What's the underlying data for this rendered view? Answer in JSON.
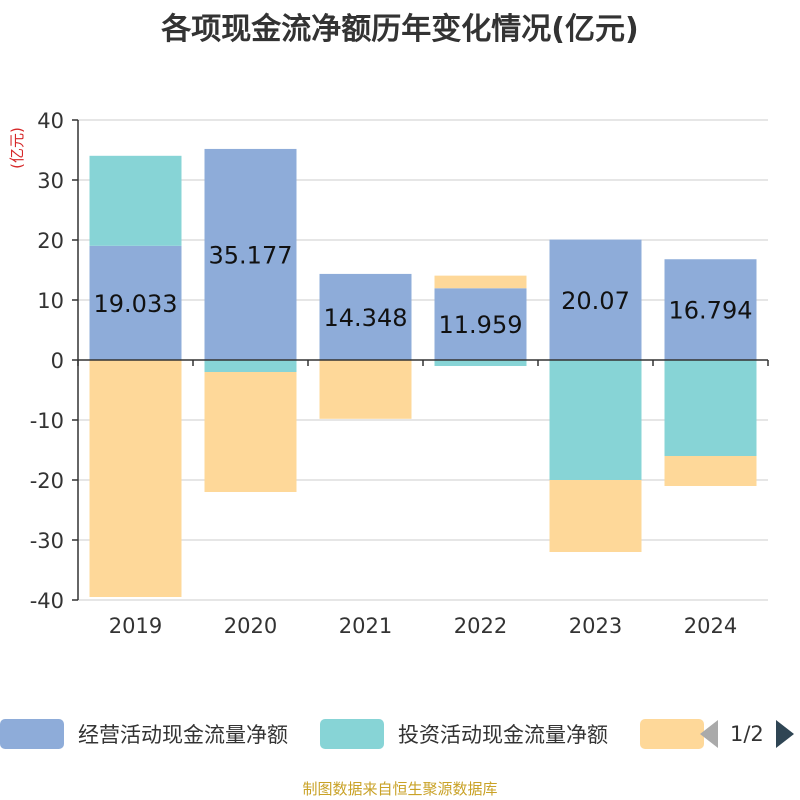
{
  "chart_data": {
    "type": "bar",
    "stacked": true,
    "title": "各项现金流净额历年变化情况(亿元)",
    "ylabel": "(亿元)",
    "ylim": [
      -40,
      40
    ],
    "yticks": [
      40,
      30,
      20,
      10,
      0,
      -10,
      -20,
      -30,
      -40
    ],
    "categories": [
      "2019",
      "2020",
      "2021",
      "2022",
      "2023",
      "2024"
    ],
    "series": [
      {
        "name": "经营活动现金流量净额",
        "color": "#8eacd9",
        "values": [
          19.033,
          35.177,
          14.348,
          11.959,
          20.07,
          16.794
        ],
        "labels": [
          "19.033",
          "35.177",
          "14.348",
          "11.959",
          "20.07",
          "16.794"
        ]
      },
      {
        "name": "投资活动现金流量净额",
        "color": "#87d4d6",
        "values": [
          15.0,
          -2.0,
          0.0,
          -1.0,
          -20.0,
          -16.0
        ]
      },
      {
        "name": "",
        "color": "#fed899",
        "values": [
          -39.5,
          -20.0,
          -9.8,
          2.1,
          -12.0,
          -5.0
        ]
      }
    ],
    "legend_position": "bottom"
  },
  "legend": {
    "page": "1/2"
  },
  "source": "制图数据来自恒生聚源数据库"
}
